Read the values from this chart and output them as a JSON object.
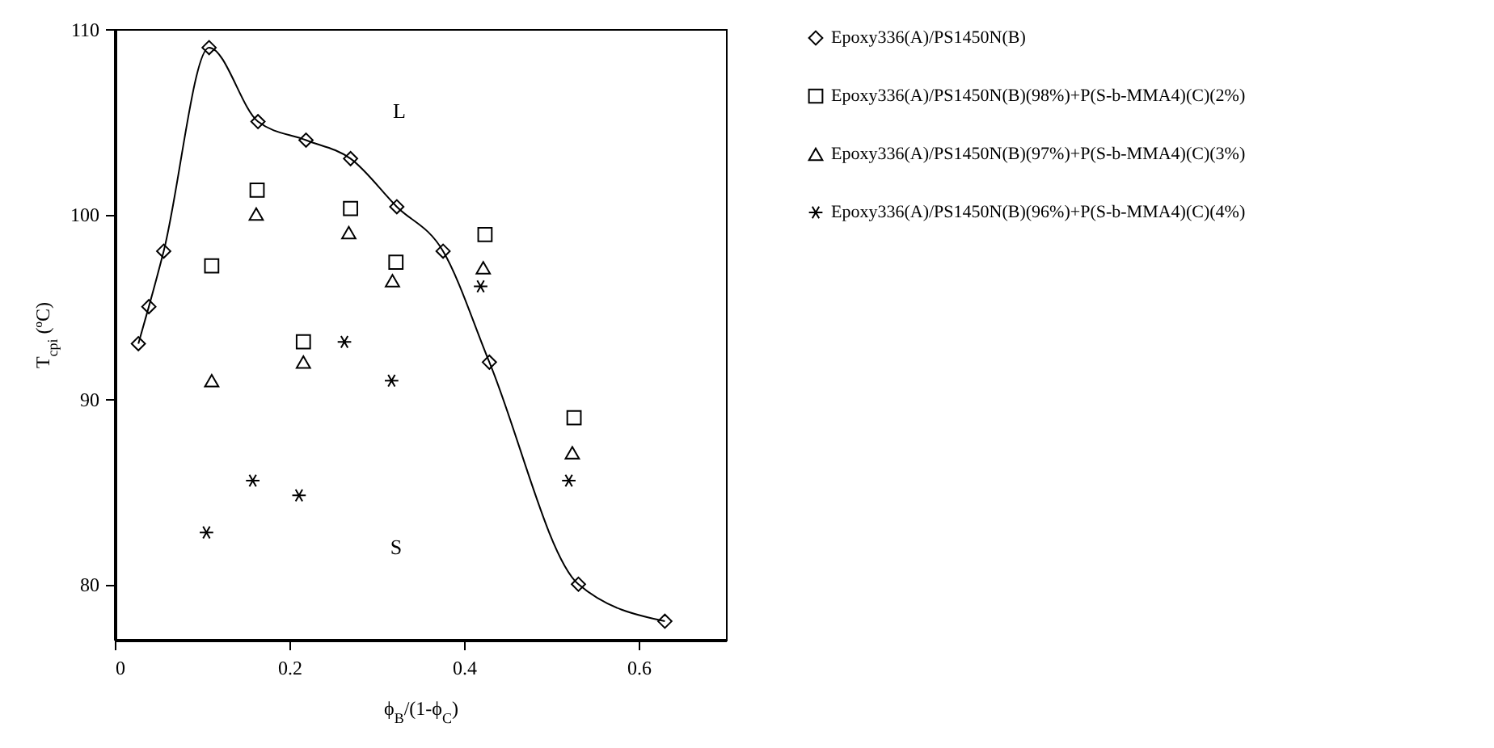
{
  "chart_data": {
    "type": "scatter",
    "xlabel": "ϕ$_{B}$/(1-ϕ$_{C}$)",
    "ylabel": "T$_{cpi}$ (ºC)",
    "xlim": [
      0,
      0.7
    ],
    "xticks": [
      0,
      0.2,
      0.4,
      0.6
    ],
    "ylim": [
      77,
      110
    ],
    "yticks": [
      80,
      90,
      100,
      110
    ],
    "legend": "right",
    "annotations": [
      "L",
      "S"
    ],
    "series": [
      {
        "name": "Epoxy336(A)/PS1450N(B)",
        "type": "line",
        "marker": "diamond",
        "line_style": "solid",
        "color": "#000000",
        "x": [
          0.027,
          0.039,
          0.056,
          0.108,
          0.164,
          0.219,
          0.27,
          0.323,
          0.376,
          0.429,
          0.531,
          0.63
        ],
        "values": [
          93.0,
          95.0,
          98.0,
          109.0,
          105.0,
          104.0,
          103.0,
          100.4,
          98.0,
          92.0,
          80.0,
          78.0
        ]
      },
      {
        "name": "Epoxy336(A)/PS1450N(B)(98%)+P(S-b-MMA4)(C)(2%)",
        "marker": "square",
        "color": "#000000",
        "x": [
          0.111,
          0.163,
          0.216,
          0.27,
          0.322,
          0.424,
          0.526
        ],
        "values": [
          97.2,
          101.3,
          93.1,
          100.3,
          97.4,
          98.9,
          89.0
        ]
      },
      {
        "name": "Epoxy336(A)/PS1450N(B)(97%)+P(S-b-MMA4)(C)(3%)",
        "marker": "triangle",
        "color": "#000000",
        "x": [
          0.111,
          0.162,
          0.216,
          0.268,
          0.318,
          0.422,
          0.524
        ],
        "values": [
          91.0,
          100.0,
          92.0,
          99.0,
          96.4,
          97.1,
          87.1
        ]
      },
      {
        "name": "Epoxy336(A)/PS1450N(B)(96%)+P(S-b-MMA4)(C)(4%)",
        "marker": "cross",
        "color": "#000000",
        "x": [
          0.105,
          0.158,
          0.211,
          0.263,
          0.317,
          0.419,
          0.52
        ],
        "values": [
          82.8,
          85.6,
          84.8,
          93.1,
          91.0,
          96.1,
          85.6
        ]
      }
    ]
  }
}
